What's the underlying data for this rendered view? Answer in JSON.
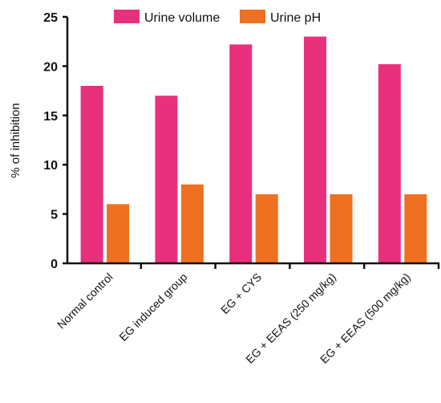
{
  "chart_data": {
    "type": "bar",
    "title": "",
    "xlabel": "",
    "ylabel": "% of inhibition",
    "ylim": [
      0,
      25
    ],
    "yticks": [
      0,
      5,
      10,
      15,
      20,
      25
    ],
    "grid": false,
    "legend_position": "top",
    "categories": [
      "Normal control",
      "EG induced group",
      "EG + CYS",
      "EG + EEAS (250 mg/kg)",
      "EG + EEAS (500 mg/kg)"
    ],
    "series": [
      {
        "name": "Urine volume",
        "color": "#e8307c",
        "values": [
          18,
          17,
          22.2,
          23,
          20.2
        ]
      },
      {
        "name": "Urine pH",
        "color": "#ee7020",
        "values": [
          6,
          8,
          7,
          7,
          7
        ]
      }
    ]
  }
}
